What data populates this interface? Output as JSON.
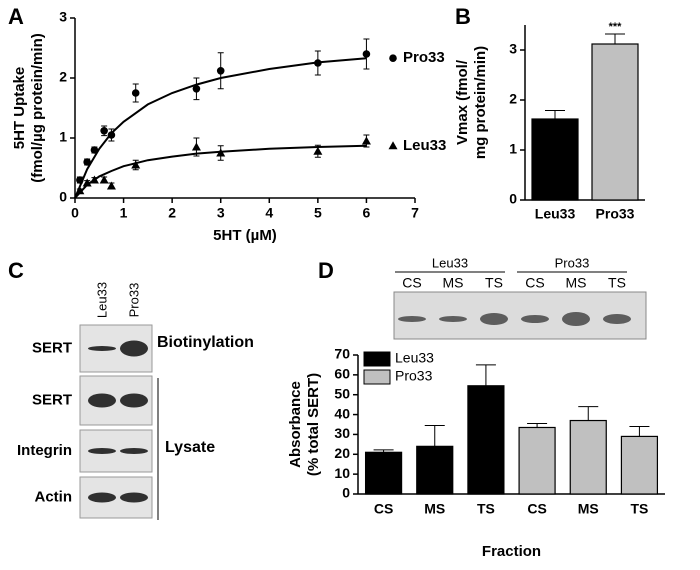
{
  "panels": [
    "A",
    "B",
    "C",
    "D"
  ],
  "chart_data": [
    {
      "type": "scatter",
      "ylabel": [
        "5HT Uptake",
        "(fmol/µg protein/min)"
      ],
      "xlabel": "5HT (µM)",
      "xlim": [
        0,
        7
      ],
      "xticks": [
        0,
        1,
        2,
        3,
        4,
        5,
        6,
        7
      ],
      "ylim": [
        0,
        3
      ],
      "yticks": [
        0,
        1,
        2,
        3
      ],
      "curve_x": [
        0,
        0.25,
        0.5,
        0.75,
        1,
        1.5,
        2,
        2.5,
        3,
        4,
        5,
        6
      ],
      "series": [
        {
          "name": "Pro33",
          "marker": "circle",
          "color": "#000000",
          "x": [
            0.1,
            0.25,
            0.4,
            0.6,
            0.75,
            1.25,
            2.5,
            3,
            5,
            6
          ],
          "values": [
            0.3,
            0.6,
            0.8,
            1.12,
            1.05,
            1.75,
            1.82,
            2.12,
            2.25,
            2.4
          ],
          "errors": [
            0.05,
            0.05,
            0.05,
            0.08,
            0.1,
            0.15,
            0.18,
            0.3,
            0.2,
            0.25
          ],
          "curve_values": [
            0,
            0.48,
            0.82,
            1.08,
            1.27,
            1.56,
            1.75,
            1.89,
            2.0,
            2.15,
            2.26,
            2.33
          ]
        },
        {
          "name": "Leu33",
          "marker": "triangle",
          "color": "#000000",
          "x": [
            0.1,
            0.25,
            0.4,
            0.6,
            0.75,
            1.25,
            2.5,
            3,
            5,
            6
          ],
          "values": [
            0.12,
            0.25,
            0.3,
            0.3,
            0.2,
            0.55,
            0.85,
            0.75,
            0.78,
            0.95
          ],
          "errors": [
            0.03,
            0.04,
            0.04,
            0.05,
            0.05,
            0.08,
            0.15,
            0.12,
            0.1,
            0.1
          ],
          "curve_values": [
            0,
            0.22,
            0.36,
            0.45,
            0.53,
            0.63,
            0.69,
            0.74,
            0.77,
            0.82,
            0.85,
            0.87
          ]
        }
      ]
    },
    {
      "type": "bar",
      "ylabel": [
        "Vmax (fmol/",
        "mg protein/min)"
      ],
      "categories": [
        "Leu33",
        "Pro33"
      ],
      "values": [
        1.62,
        3.12
      ],
      "errors": [
        0.17,
        0.2
      ],
      "colors": [
        "#000000",
        "#c0c0c0"
      ],
      "annotations": [
        null,
        "***"
      ],
      "ylim": [
        0,
        3.5
      ],
      "yticks": [
        0,
        1,
        2,
        3
      ]
    },
    {
      "type": "grouped_bar",
      "ylabel": [
        "Absorbance",
        "(% total SERT)"
      ],
      "xlabel": "Fraction",
      "categories": [
        "CS",
        "MS",
        "TS",
        "CS",
        "MS",
        "TS"
      ],
      "series": [
        {
          "name": "Leu33",
          "color": "#000000",
          "values": [
            21,
            24,
            54.5,
            null,
            null,
            null
          ],
          "errors": [
            1.2,
            10.5,
            10.5,
            null,
            null,
            null
          ]
        },
        {
          "name": "Pro33",
          "color": "#c0c0c0",
          "values": [
            null,
            null,
            null,
            33.5,
            37,
            29
          ],
          "errors": [
            null,
            null,
            null,
            2,
            7,
            5
          ]
        }
      ],
      "ylim": [
        0,
        70
      ],
      "yticks": [
        0,
        10,
        20,
        30,
        40,
        50,
        60,
        70
      ],
      "legend": "upper-left"
    }
  ],
  "blot_c": {
    "lanes": [
      "Leu33",
      "Pro33"
    ],
    "rows": [
      "SERT",
      "SERT",
      "Integrin",
      "Actin"
    ],
    "labels": [
      "Biotinylation",
      "Lysate"
    ]
  },
  "blot_d": {
    "groups": [
      "Leu33",
      "Pro33"
    ],
    "lanes": [
      "CS",
      "MS",
      "TS",
      "CS",
      "MS",
      "TS"
    ]
  }
}
